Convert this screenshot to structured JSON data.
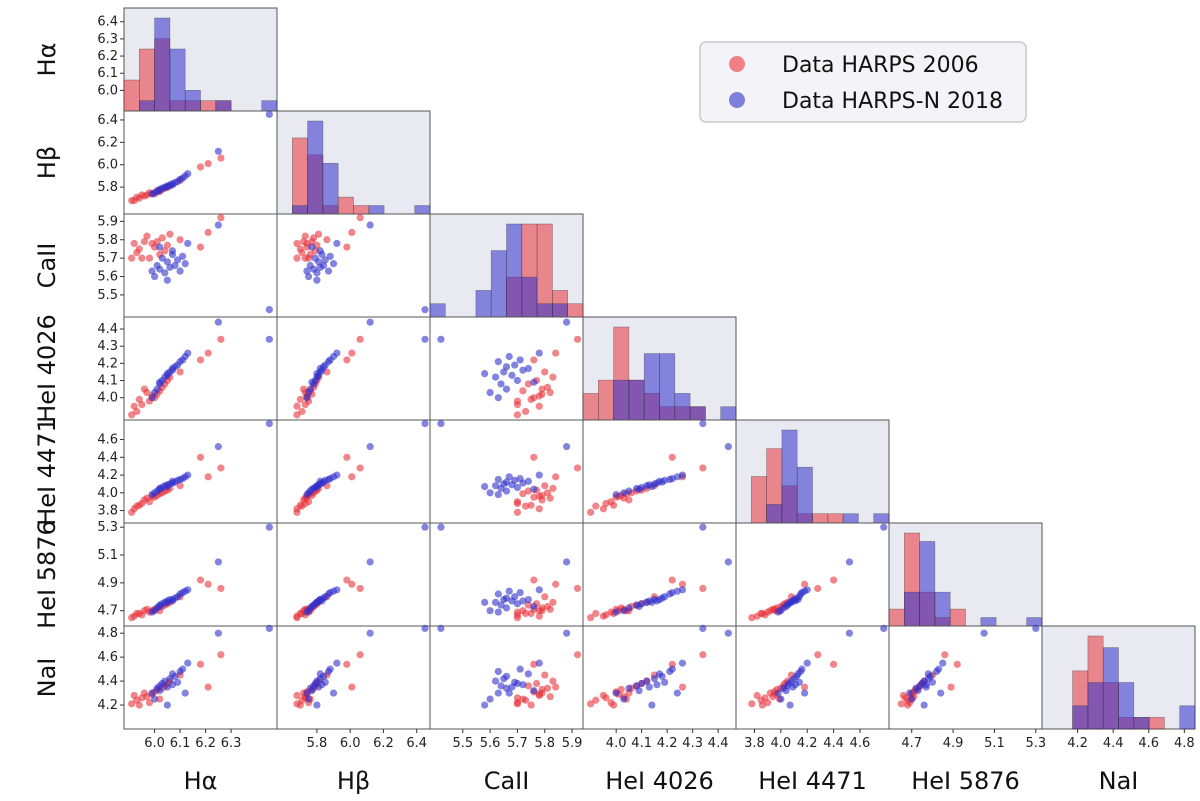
{
  "chart_data": {
    "type": "scatter",
    "variables": [
      {
        "name": "Hα",
        "lim": [
          5.88,
          6.48
        ],
        "ticks": [
          "6.0",
          "6.1",
          "6.2",
          "6.3"
        ],
        "diag_ticks": [
          "6.0",
          "6.1",
          "6.2",
          "6.3",
          "6.4"
        ]
      },
      {
        "name": "Hβ",
        "lim": [
          5.56,
          6.48
        ],
        "ticks": [
          "5.8",
          "6.0",
          "6.2",
          "6.4"
        ]
      },
      {
        "name": "CaII",
        "lim": [
          5.38,
          5.94
        ],
        "ticks": [
          "5.5",
          "5.6",
          "5.7",
          "5.8",
          "5.9"
        ]
      },
      {
        "name": "HeI 4026",
        "lim": [
          3.87,
          4.47
        ],
        "ticks": [
          "4.0",
          "4.1",
          "4.2",
          "4.3",
          "4.4"
        ]
      },
      {
        "name": "HeI 4471",
        "lim": [
          3.66,
          4.82
        ],
        "ticks": [
          "3.8",
          "4.0",
          "4.2",
          "4.4",
          "4.6"
        ]
      },
      {
        "name": "HeI 5876",
        "lim": [
          4.59,
          5.33
        ],
        "ticks": [
          "4.7",
          "4.9",
          "5.1",
          "5.3"
        ]
      },
      {
        "name": "NaI",
        "lim": [
          4.0,
          4.86
        ],
        "ticks": [
          "4.2",
          "4.4",
          "4.6",
          "4.8"
        ]
      }
    ],
    "axis_labels": [
      "Hα",
      "Hβ",
      "CaII",
      "HeI 4026",
      "HeI 4471",
      "HeI 5876",
      "NaI"
    ],
    "series": [
      {
        "name": "Data HARPS 2006",
        "color": "#e8333b",
        "points": [
          [
            5.92,
            5.68,
            5.78,
            3.95,
            3.82,
            4.66,
            4.28
          ],
          [
            5.93,
            5.71,
            5.73,
            3.92,
            3.85,
            4.68,
            4.24
          ],
          [
            5.95,
            5.73,
            5.7,
            3.96,
            3.88,
            4.67,
            4.26
          ],
          [
            5.96,
            5.72,
            5.79,
            4.05,
            3.92,
            4.7,
            4.3
          ],
          [
            5.98,
            5.75,
            5.7,
            3.98,
            3.9,
            4.69,
            4.22
          ],
          [
            6.0,
            5.74,
            5.76,
            4.0,
            3.95,
            4.71,
            4.31
          ],
          [
            6.01,
            5.77,
            5.79,
            4.02,
            3.97,
            4.72,
            4.33
          ],
          [
            6.02,
            5.76,
            5.72,
            4.04,
            3.99,
            4.7,
            4.25
          ],
          [
            6.03,
            5.78,
            5.81,
            4.06,
            4.0,
            4.73,
            4.34
          ],
          [
            5.94,
            5.7,
            5.75,
            3.99,
            3.86,
            4.68,
            4.2
          ],
          [
            5.97,
            5.73,
            5.82,
            4.03,
            3.94,
            4.71,
            4.27
          ],
          [
            6.04,
            5.79,
            5.74,
            4.08,
            4.02,
            4.74,
            4.36
          ],
          [
            6.05,
            5.8,
            5.77,
            4.1,
            4.03,
            4.75,
            4.38
          ],
          [
            5.91,
            5.68,
            5.7,
            3.9,
            3.78,
            4.65,
            4.21
          ],
          [
            5.99,
            5.74,
            5.78,
            4.01,
            3.96,
            4.7,
            4.29
          ],
          [
            6.06,
            5.81,
            5.83,
            4.12,
            4.05,
            4.76,
            4.4
          ],
          [
            6.18,
            5.98,
            5.76,
            4.22,
            4.4,
            4.92,
            4.54
          ],
          [
            6.26,
            6.06,
            5.92,
            4.34,
            4.28,
            4.86,
            4.62
          ],
          [
            6.21,
            6.01,
            5.84,
            4.26,
            4.18,
            4.89,
            4.35
          ],
          [
            6.1,
            5.86,
            5.8,
            4.15,
            4.08,
            4.8,
            4.45
          ]
        ]
      },
      {
        "name": "Data HARPS-N 2018",
        "color": "#3030cc",
        "points": [
          [
            5.99,
            5.74,
            5.63,
            4.0,
            3.98,
            4.69,
            4.3
          ],
          [
            6.01,
            5.76,
            5.66,
            4.05,
            4.02,
            4.72,
            4.34
          ],
          [
            6.02,
            5.78,
            5.64,
            4.08,
            4.05,
            4.74,
            4.36
          ],
          [
            6.03,
            5.79,
            5.7,
            4.1,
            4.06,
            4.75,
            4.38
          ],
          [
            6.04,
            5.8,
            5.62,
            4.12,
            4.08,
            4.76,
            4.4
          ],
          [
            6.05,
            5.81,
            5.68,
            4.13,
            4.09,
            4.77,
            4.35
          ],
          [
            6.06,
            5.82,
            5.65,
            4.15,
            4.1,
            4.78,
            4.42
          ],
          [
            6.07,
            5.83,
            5.72,
            4.16,
            4.11,
            4.77,
            4.37
          ],
          [
            6.08,
            5.84,
            5.66,
            4.18,
            4.12,
            4.79,
            4.44
          ],
          [
            6.09,
            5.85,
            5.69,
            4.19,
            4.14,
            4.8,
            4.39
          ],
          [
            6.0,
            5.75,
            5.6,
            4.03,
            4.0,
            4.7,
            4.25
          ],
          [
            6.02,
            5.77,
            5.76,
            4.09,
            4.04,
            4.73,
            4.32
          ],
          [
            6.05,
            5.8,
            5.58,
            4.14,
            4.07,
            4.76,
            4.2
          ],
          [
            6.07,
            5.82,
            5.74,
            4.17,
            4.13,
            4.78,
            4.46
          ],
          [
            6.1,
            5.87,
            5.63,
            4.21,
            4.15,
            4.82,
            4.48
          ],
          [
            6.11,
            5.88,
            5.71,
            4.22,
            4.16,
            4.83,
            4.5
          ],
          [
            6.12,
            5.9,
            5.67,
            4.24,
            4.18,
            4.84,
            4.3
          ],
          [
            6.13,
            5.92,
            5.78,
            4.26,
            4.2,
            4.85,
            4.55
          ],
          [
            6.25,
            6.12,
            5.88,
            4.44,
            4.52,
            5.05,
            4.8
          ],
          [
            6.45,
            6.45,
            5.42,
            4.34,
            4.78,
            5.3,
            4.84
          ]
        ]
      }
    ],
    "legend": {
      "placement": "top-right",
      "entries": [
        "Data HARPS 2006",
        "Data HARPS-N 2018"
      ]
    },
    "diagonal": "histogram",
    "panel_background": "#e9e9f1"
  }
}
